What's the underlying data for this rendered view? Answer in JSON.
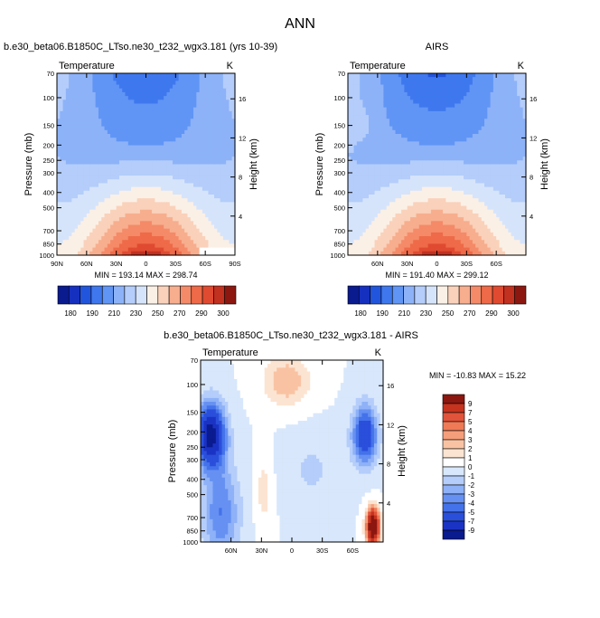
{
  "figure": {
    "title": "ANN",
    "colors": {
      "absolute_levels": [
        "#0a1a8f",
        "#1530bf",
        "#2255dd",
        "#3f78ee",
        "#6095f5",
        "#8db2f8",
        "#b4cdfa",
        "#d6e4fb",
        "#fbf0e6",
        "#fad1ba",
        "#f7ae8e",
        "#f48a68",
        "#ee6a48",
        "#e04a30",
        "#c23020",
        "#8c1710"
      ],
      "difference_levels": [
        "#0a1a8f",
        "#1b33c4",
        "#2a4fdb",
        "#4472ea",
        "#6691f2",
        "#8eb1f7",
        "#b4cdfa",
        "#d8e7fb",
        "#ffffff",
        "#fce4d2",
        "#f9c3a3",
        "#f59e7b",
        "#ef7a55",
        "#e1533a",
        "#c6331f",
        "#8c1710"
      ],
      "missing_value": "#ffffff"
    }
  },
  "chart_data": [
    {
      "type": "heatmap",
      "title": "b.e30_beta06.B1850C_LTso.ne30_t232_wgx3.181 (yrs 10-39)",
      "variable_label": "Temperature",
      "units": "K",
      "ylabel": "Pressure (mb)",
      "ylabel_right": "Height (km)",
      "x_ticks": [
        "90N",
        "60N",
        "30N",
        "0",
        "30S",
        "60S",
        "90S"
      ],
      "y_ticks": [
        "70",
        "100",
        "150",
        "200",
        "250",
        "300",
        "400",
        "500",
        "700",
        "850",
        "1000"
      ],
      "y_right_ticks": [
        "4",
        "8",
        "12",
        "16"
      ],
      "stats_text": "MIN = 193.14   MAX = 298.74",
      "min": 193.14,
      "max": 298.74,
      "colorbar_labels": [
        "180",
        "190",
        "210",
        "230",
        "250",
        "270",
        "290",
        "300"
      ],
      "xlim": [
        90,
        -90
      ],
      "ylim_mb": [
        1000,
        70
      ]
    },
    {
      "type": "heatmap",
      "title": "AIRS",
      "variable_label": "Temperature",
      "units": "K",
      "ylabel": "Pressure (mb)",
      "ylabel_right": "Height (km)",
      "x_ticks": [
        "60N",
        "30N",
        "0",
        "30S",
        "60S"
      ],
      "y_ticks": [
        "70",
        "100",
        "150",
        "200",
        "250",
        "300",
        "400",
        "500",
        "700",
        "850",
        "1000"
      ],
      "y_right_ticks": [
        "4",
        "8",
        "12",
        "16"
      ],
      "stats_text": "MIN = 191.40   MAX = 299.12",
      "min": 191.4,
      "max": 299.12,
      "colorbar_labels": [
        "180",
        "190",
        "210",
        "230",
        "250",
        "270",
        "290",
        "300"
      ],
      "xlim": [
        90,
        -90
      ],
      "ylim_mb": [
        1000,
        70
      ]
    },
    {
      "type": "heatmap",
      "title": "b.e30_beta06.B1850C_LTso.ne30_t232_wgx3.181 - AIRS",
      "variable_label": "Temperature",
      "units": "K",
      "ylabel": "Pressure (mb)",
      "ylabel_right": "Height (km)",
      "x_ticks": [
        "60N",
        "30N",
        "0",
        "30S",
        "60S"
      ],
      "y_ticks": [
        "70",
        "100",
        "150",
        "200",
        "250",
        "300",
        "400",
        "500",
        "700",
        "850",
        "1000"
      ],
      "y_right_ticks": [
        "4",
        "8",
        "12",
        "16"
      ],
      "stats_text": "MIN = -10.83   MAX =  15.22",
      "min": -10.83,
      "max": 15.22,
      "colorbar_labels": [
        "9",
        "7",
        "5",
        "4",
        "3",
        "2",
        "1",
        "0",
        "-1",
        "-2",
        "-3",
        "-4",
        "-5",
        "-7",
        "-9"
      ],
      "xlim": [
        90,
        -90
      ],
      "ylim_mb": [
        1000,
        70
      ]
    }
  ]
}
